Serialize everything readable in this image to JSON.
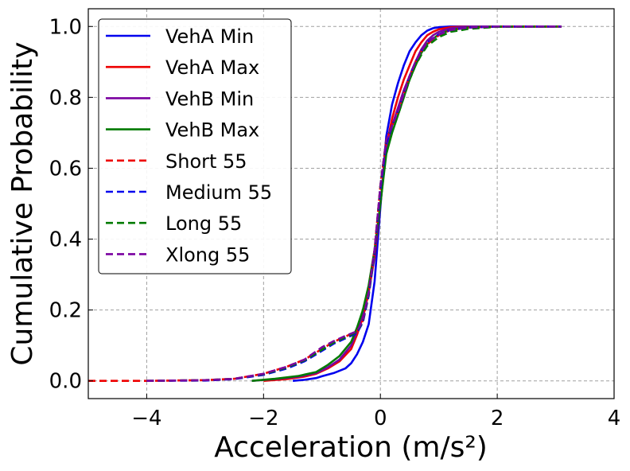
{
  "chart_data": {
    "type": "line",
    "title": "",
    "xlabel": "Acceleration (m/s²)",
    "ylabel": "Cumulative Probability",
    "xlim": [
      -5,
      4
    ],
    "ylim": [
      -0.05,
      1.05
    ],
    "xticks": [
      -4,
      -2,
      0,
      2,
      4
    ],
    "xtick_labels": [
      "−4",
      "−2",
      "0",
      "2",
      "4"
    ],
    "yticks": [
      0.0,
      0.2,
      0.4,
      0.6,
      0.8,
      1.0
    ],
    "ytick_labels": [
      "0.0",
      "0.2",
      "0.4",
      "0.6",
      "0.8",
      "1.0"
    ],
    "grid": true,
    "legend_position": "top-left",
    "series": [
      {
        "name": "VehA Min",
        "color": "#0000ee",
        "style": "solid",
        "x": [
          -1.5,
          -1.3,
          -1.1,
          -1.0,
          -0.8,
          -0.6,
          -0.5,
          -0.4,
          -0.3,
          -0.2,
          -0.1,
          0.0,
          0.1,
          0.2,
          0.3,
          0.4,
          0.5,
          0.6,
          0.7,
          0.8,
          0.9,
          1.0,
          1.2,
          1.5,
          2.0,
          3.1
        ],
        "y": [
          0.0,
          0.003,
          0.008,
          0.013,
          0.022,
          0.035,
          0.05,
          0.075,
          0.11,
          0.16,
          0.28,
          0.49,
          0.69,
          0.78,
          0.84,
          0.89,
          0.93,
          0.955,
          0.975,
          0.988,
          0.995,
          0.998,
          1.0,
          1.0,
          1.0,
          1.0
        ]
      },
      {
        "name": "VehA Max",
        "color": "#ee0000",
        "style": "solid",
        "x": [
          -2.0,
          -1.6,
          -1.3,
          -1.1,
          -0.9,
          -0.7,
          -0.5,
          -0.4,
          -0.3,
          -0.2,
          -0.1,
          0.0,
          0.1,
          0.2,
          0.3,
          0.4,
          0.5,
          0.6,
          0.7,
          0.8,
          0.9,
          1.0,
          1.2,
          1.5,
          2.0,
          3.1
        ],
        "y": [
          0.0,
          0.005,
          0.012,
          0.02,
          0.035,
          0.055,
          0.09,
          0.13,
          0.18,
          0.25,
          0.35,
          0.5,
          0.66,
          0.74,
          0.8,
          0.85,
          0.89,
          0.93,
          0.955,
          0.975,
          0.985,
          0.992,
          0.998,
          1.0,
          1.0,
          1.0
        ]
      },
      {
        "name": "VehB Min",
        "color": "#7a00a0",
        "style": "solid",
        "x": [
          -2.2,
          -1.8,
          -1.4,
          -1.1,
          -0.9,
          -0.7,
          -0.5,
          -0.4,
          -0.3,
          -0.2,
          -0.1,
          0.0,
          0.1,
          0.2,
          0.3,
          0.4,
          0.5,
          0.6,
          0.7,
          0.8,
          0.9,
          1.0,
          1.2,
          1.5,
          2.0,
          3.1
        ],
        "y": [
          0.0,
          0.005,
          0.012,
          0.022,
          0.038,
          0.06,
          0.1,
          0.14,
          0.19,
          0.26,
          0.36,
          0.5,
          0.65,
          0.72,
          0.77,
          0.82,
          0.86,
          0.9,
          0.935,
          0.96,
          0.975,
          0.985,
          0.995,
          1.0,
          1.0,
          1.0
        ]
      },
      {
        "name": "VehB Max",
        "color": "#007a00",
        "style": "solid",
        "x": [
          -2.2,
          -1.8,
          -1.4,
          -1.1,
          -0.9,
          -0.7,
          -0.5,
          -0.4,
          -0.3,
          -0.2,
          -0.1,
          0.0,
          0.1,
          0.2,
          0.3,
          0.4,
          0.5,
          0.6,
          0.7,
          0.8,
          0.9,
          1.0,
          1.2,
          1.5,
          2.0,
          3.1
        ],
        "y": [
          0.0,
          0.006,
          0.014,
          0.025,
          0.045,
          0.07,
          0.11,
          0.15,
          0.2,
          0.27,
          0.37,
          0.5,
          0.64,
          0.7,
          0.75,
          0.8,
          0.85,
          0.89,
          0.925,
          0.95,
          0.965,
          0.978,
          0.99,
          0.997,
          1.0,
          1.0
        ]
      },
      {
        "name": "Short 55",
        "color": "#ee0000",
        "style": "dashed",
        "x": [
          -5.0,
          -4.0,
          -3.0,
          -2.5,
          -2.0,
          -1.6,
          -1.3,
          -1.0,
          -0.8,
          -0.6,
          -0.4,
          -0.3,
          -0.2,
          -0.1,
          0.0,
          0.1,
          0.2,
          0.3,
          0.4,
          0.5,
          0.6,
          0.7,
          0.8,
          1.0,
          1.2,
          1.5,
          2.0,
          3.1
        ],
        "y": [
          0.0,
          0.0,
          0.002,
          0.006,
          0.02,
          0.04,
          0.06,
          0.09,
          0.11,
          0.125,
          0.14,
          0.17,
          0.25,
          0.37,
          0.55,
          0.68,
          0.72,
          0.76,
          0.81,
          0.86,
          0.9,
          0.93,
          0.95,
          0.975,
          0.99,
          0.997,
          1.0,
          1.0
        ]
      },
      {
        "name": "Medium 55",
        "color": "#0000ee",
        "style": "dashed",
        "x": [
          -4.0,
          -3.0,
          -2.5,
          -2.0,
          -1.6,
          -1.3,
          -1.0,
          -0.8,
          -0.6,
          -0.4,
          -0.3,
          -0.2,
          -0.1,
          0.0,
          0.1,
          0.2,
          0.3,
          0.4,
          0.5,
          0.6,
          0.7,
          0.8,
          1.0,
          1.2,
          1.5,
          2.0,
          3.1
        ],
        "y": [
          0.0,
          0.001,
          0.005,
          0.017,
          0.035,
          0.055,
          0.085,
          0.105,
          0.12,
          0.135,
          0.165,
          0.24,
          0.36,
          0.54,
          0.67,
          0.72,
          0.76,
          0.81,
          0.86,
          0.9,
          0.93,
          0.955,
          0.978,
          0.99,
          0.997,
          1.0,
          1.0
        ]
      },
      {
        "name": "Long 55",
        "color": "#007a00",
        "style": "dashed",
        "x": [
          -4.0,
          -3.0,
          -2.5,
          -2.0,
          -1.6,
          -1.3,
          -1.0,
          -0.8,
          -0.6,
          -0.4,
          -0.3,
          -0.2,
          -0.1,
          0.0,
          0.1,
          0.2,
          0.3,
          0.4,
          0.5,
          0.6,
          0.7,
          0.8,
          1.0,
          1.2,
          1.5,
          2.0,
          3.1
        ],
        "y": [
          0.0,
          0.002,
          0.006,
          0.019,
          0.038,
          0.058,
          0.088,
          0.108,
          0.123,
          0.138,
          0.168,
          0.245,
          0.365,
          0.55,
          0.68,
          0.72,
          0.75,
          0.8,
          0.85,
          0.89,
          0.92,
          0.945,
          0.97,
          0.985,
          0.993,
          0.999,
          1.0
        ]
      },
      {
        "name": "Xlong 55",
        "color": "#7a00a0",
        "style": "dashed",
        "x": [
          -4.0,
          -3.0,
          -2.5,
          -2.0,
          -1.6,
          -1.3,
          -1.0,
          -0.8,
          -0.6,
          -0.4,
          -0.3,
          -0.2,
          -0.1,
          0.0,
          0.1,
          0.2,
          0.3,
          0.4,
          0.5,
          0.6,
          0.7,
          0.8,
          1.0,
          1.2,
          1.5,
          2.0,
          3.1
        ],
        "y": [
          0.0,
          0.002,
          0.006,
          0.02,
          0.04,
          0.06,
          0.095,
          0.112,
          0.127,
          0.14,
          0.17,
          0.25,
          0.37,
          0.55,
          0.68,
          0.72,
          0.76,
          0.81,
          0.86,
          0.9,
          0.93,
          0.955,
          0.977,
          0.99,
          0.997,
          1.0,
          1.0
        ]
      }
    ]
  }
}
